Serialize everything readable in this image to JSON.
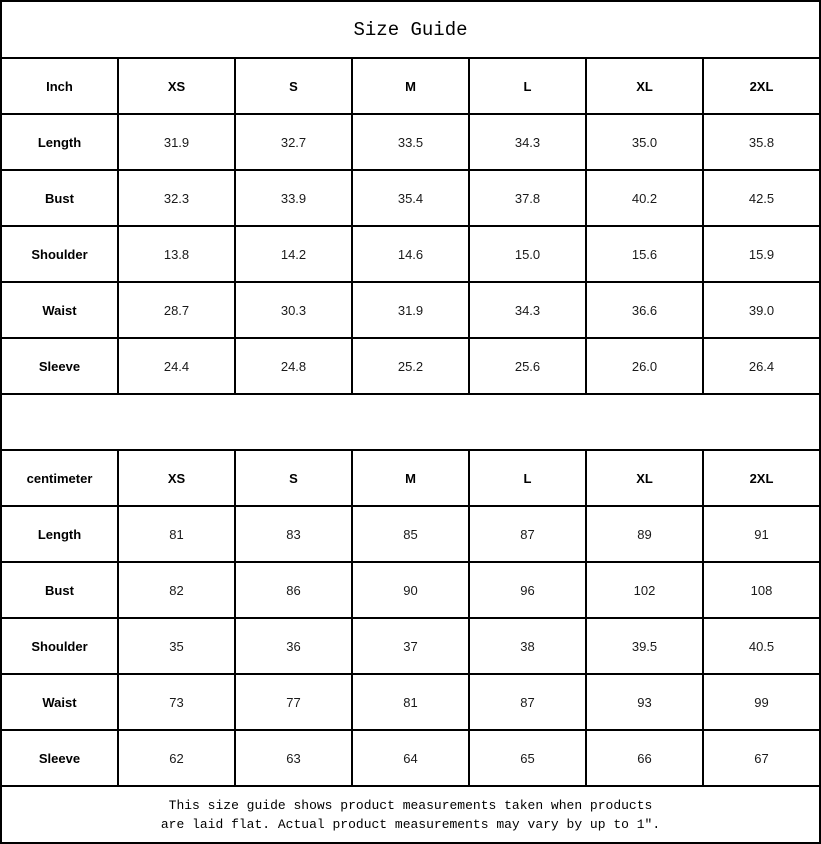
{
  "title": "Size Guide",
  "inch_table": {
    "unit_label": "Inch",
    "sizes": [
      "XS",
      "S",
      "M",
      "L",
      "XL",
      "2XL"
    ],
    "rows": [
      {
        "label": "Length",
        "values": [
          "31.9",
          "32.7",
          "33.5",
          "34.3",
          "35.0",
          "35.8"
        ]
      },
      {
        "label": "Bust",
        "values": [
          "32.3",
          "33.9",
          "35.4",
          "37.8",
          "40.2",
          "42.5"
        ]
      },
      {
        "label": "Shoulder",
        "values": [
          "13.8",
          "14.2",
          "14.6",
          "15.0",
          "15.6",
          "15.9"
        ]
      },
      {
        "label": "Waist",
        "values": [
          "28.7",
          "30.3",
          "31.9",
          "34.3",
          "36.6",
          "39.0"
        ]
      },
      {
        "label": "Sleeve",
        "values": [
          "24.4",
          "24.8",
          "25.2",
          "25.6",
          "26.0",
          "26.4"
        ]
      }
    ]
  },
  "cm_table": {
    "unit_label": "centimeter",
    "sizes": [
      "XS",
      "S",
      "M",
      "L",
      "XL",
      "2XL"
    ],
    "rows": [
      {
        "label": "Length",
        "values": [
          "81",
          "83",
          "85",
          "87",
          "89",
          "91"
        ]
      },
      {
        "label": "Bust",
        "values": [
          "82",
          "86",
          "90",
          "96",
          "102",
          "108"
        ]
      },
      {
        "label": "Shoulder",
        "values": [
          "35",
          "36",
          "37",
          "38",
          "39.5",
          "40.5"
        ]
      },
      {
        "label": "Waist",
        "values": [
          "73",
          "77",
          "81",
          "87",
          "93",
          "99"
        ]
      },
      {
        "label": "Sleeve",
        "values": [
          "62",
          "63",
          "64",
          "65",
          "66",
          "67"
        ]
      }
    ]
  },
  "footer": {
    "line1": "This size guide shows product measurements taken when products",
    "line2": "are laid flat. Actual product measurements may vary by up to 1″."
  },
  "colors": {
    "border": "#000000",
    "text": "#000000",
    "background": "#ffffff"
  }
}
